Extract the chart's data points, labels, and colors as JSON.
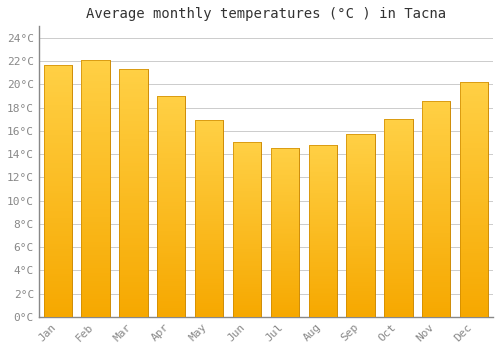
{
  "months": [
    "Jan",
    "Feb",
    "Mar",
    "Apr",
    "May",
    "Jun",
    "Jul",
    "Aug",
    "Sep",
    "Oct",
    "Nov",
    "Dec"
  ],
  "temperatures": [
    21.7,
    22.1,
    21.3,
    19.0,
    16.9,
    15.0,
    14.5,
    14.8,
    15.7,
    17.0,
    18.6,
    20.2
  ],
  "bar_color_top": "#FFD045",
  "bar_color_bottom": "#F5A800",
  "bar_edge_color": "#CC8800",
  "title": "Average monthly temperatures (°C ) in Tacna",
  "ylim": [
    0,
    25
  ],
  "yticks": [
    0,
    2,
    4,
    6,
    8,
    10,
    12,
    14,
    16,
    18,
    20,
    22,
    24
  ],
  "ytick_labels": [
    "0°C",
    "2°C",
    "4°C",
    "6°C",
    "8°C",
    "10°C",
    "12°C",
    "14°C",
    "16°C",
    "18°C",
    "20°C",
    "22°C",
    "24°C"
  ],
  "background_color": "#ffffff",
  "grid_color": "#cccccc",
  "title_fontsize": 10,
  "tick_fontsize": 8
}
